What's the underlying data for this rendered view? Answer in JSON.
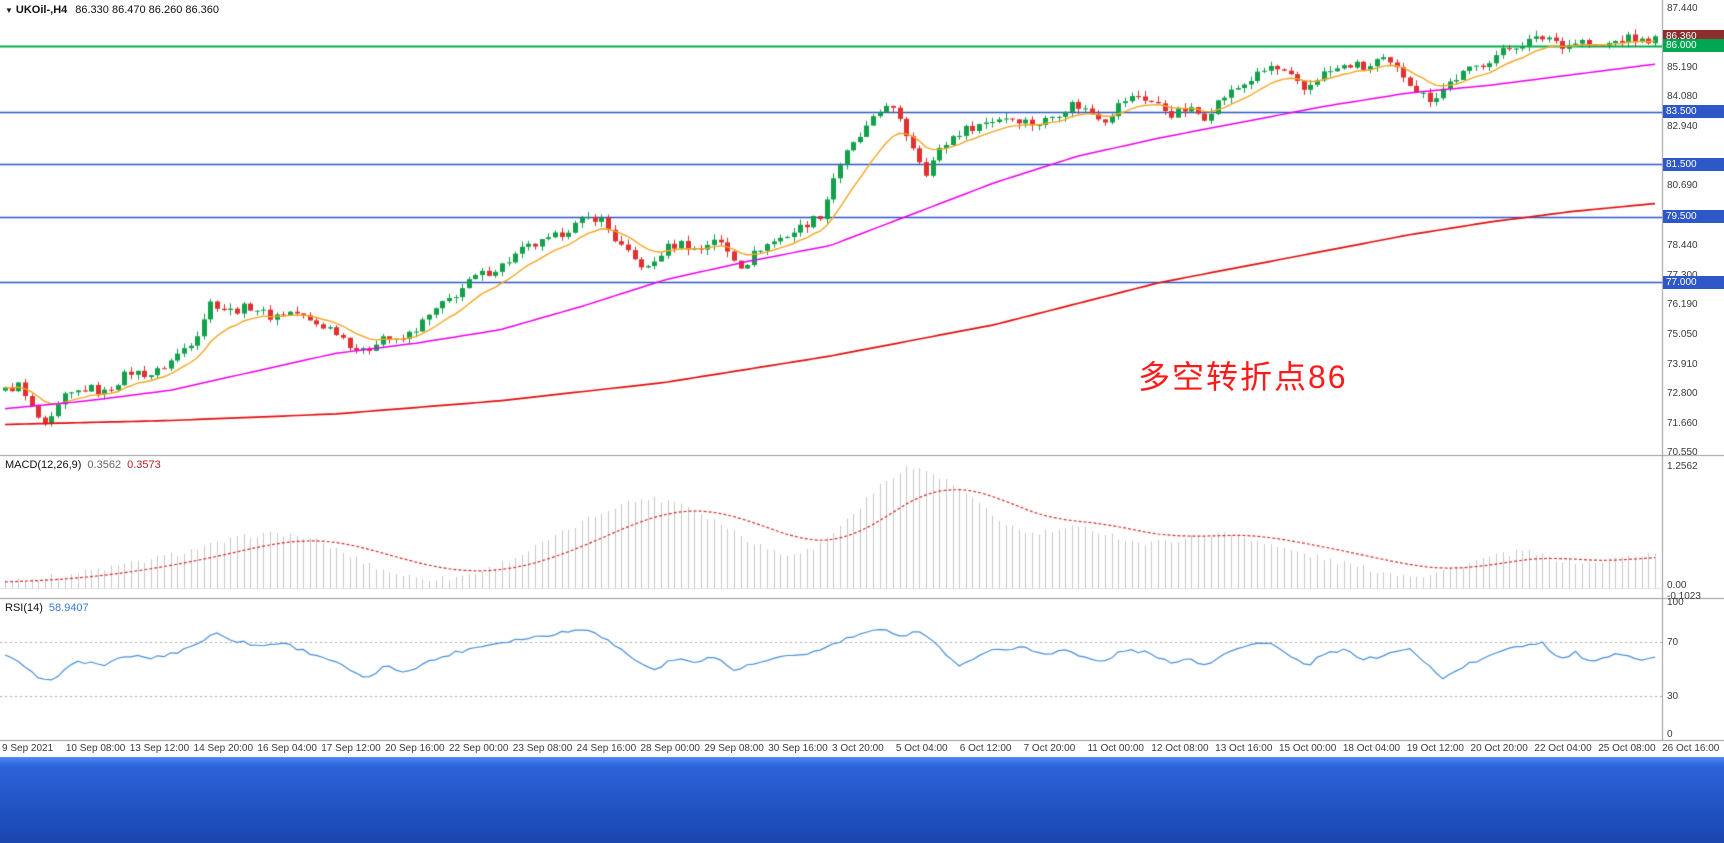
{
  "header": {
    "collapse_icon": "▼",
    "symbol_period": "UKOil-,H4",
    "ohlc": "86.330 86.470 86.260 86.360"
  },
  "chart_data": {
    "type": "candlestick",
    "symbol": "UKOil",
    "timeframe": "H4",
    "price_panel": {
      "ylim": [
        70.44,
        87.74
      ],
      "axis_ticks": [
        "87.440",
        "85.190",
        "84.080",
        "82.940",
        "80.690",
        "78.440",
        "77.300",
        "76.190",
        "75.050",
        "73.910",
        "72.800",
        "71.660",
        "70.550"
      ],
      "badges": [
        {
          "label": "86.360",
          "price": 86.36,
          "bg": "#8b2e2e",
          "role": "current-price"
        },
        {
          "label": "86.000",
          "price": 86.0,
          "bg": "#00a651",
          "role": "horizontal-line"
        },
        {
          "label": "83.500",
          "price": 83.5,
          "bg": "#2e58c8",
          "role": "support-line"
        },
        {
          "label": "81.500",
          "price": 81.5,
          "bg": "#2e58c8",
          "role": "support-line"
        },
        {
          "label": "79.500",
          "price": 79.5,
          "bg": "#2e58c8",
          "role": "support-line"
        },
        {
          "label": "77.000",
          "price": 77.0,
          "bg": "#2e58c8",
          "role": "support-line"
        }
      ],
      "hlines": [
        {
          "price": 86.0,
          "color": "#00b050",
          "width": 2
        },
        {
          "price": 83.5,
          "color": "#2e58c8",
          "width": 1.4
        },
        {
          "price": 81.5,
          "color": "#2e58c8",
          "width": 1.4
        },
        {
          "price": 79.5,
          "color": "#2e58c8",
          "width": 1.4
        },
        {
          "price": 77.0,
          "color": "#2e58c8",
          "width": 1.4
        }
      ],
      "candles": {
        "count": 250,
        "up_color": "#12a14b",
        "down_color": "#e03030",
        "close_anchors": [
          [
            0,
            72.9
          ],
          [
            0.008,
            73.1
          ],
          [
            0.015,
            72.3
          ],
          [
            0.025,
            71.4
          ],
          [
            0.035,
            72.6
          ],
          [
            0.05,
            73.0
          ],
          [
            0.06,
            72.8
          ],
          [
            0.075,
            73.6
          ],
          [
            0.09,
            73.5
          ],
          [
            0.1,
            74.0
          ],
          [
            0.115,
            74.9
          ],
          [
            0.125,
            76.3
          ],
          [
            0.135,
            75.9
          ],
          [
            0.15,
            76.1
          ],
          [
            0.16,
            75.7
          ],
          [
            0.175,
            75.9
          ],
          [
            0.185,
            75.5
          ],
          [
            0.2,
            75.2
          ],
          [
            0.21,
            74.6
          ],
          [
            0.218,
            74.3
          ],
          [
            0.228,
            75.0
          ],
          [
            0.238,
            74.7
          ],
          [
            0.25,
            75.3
          ],
          [
            0.26,
            75.9
          ],
          [
            0.27,
            76.4
          ],
          [
            0.285,
            77.2
          ],
          [
            0.3,
            77.6
          ],
          [
            0.315,
            78.3
          ],
          [
            0.33,
            78.6
          ],
          [
            0.34,
            79.0
          ],
          [
            0.352,
            79.4
          ],
          [
            0.36,
            79.5
          ],
          [
            0.37,
            78.6
          ],
          [
            0.38,
            77.9
          ],
          [
            0.39,
            77.5
          ],
          [
            0.4,
            78.3
          ],
          [
            0.41,
            78.5
          ],
          [
            0.42,
            78.2
          ],
          [
            0.43,
            78.7
          ],
          [
            0.44,
            78.0
          ],
          [
            0.447,
            77.6
          ],
          [
            0.457,
            78.3
          ],
          [
            0.467,
            78.6
          ],
          [
            0.477,
            78.9
          ],
          [
            0.487,
            79.3
          ],
          [
            0.495,
            79.6
          ],
          [
            0.503,
            81.2
          ],
          [
            0.51,
            81.9
          ],
          [
            0.52,
            82.7
          ],
          [
            0.528,
            83.3
          ],
          [
            0.535,
            83.9
          ],
          [
            0.542,
            83.1
          ],
          [
            0.55,
            82.2
          ],
          [
            0.558,
            81.2
          ],
          [
            0.566,
            82.0
          ],
          [
            0.575,
            82.6
          ],
          [
            0.585,
            82.9
          ],
          [
            0.595,
            83.1
          ],
          [
            0.605,
            83.3
          ],
          [
            0.615,
            83.2
          ],
          [
            0.625,
            83.0
          ],
          [
            0.637,
            83.4
          ],
          [
            0.647,
            83.8
          ],
          [
            0.657,
            83.5
          ],
          [
            0.667,
            83.2
          ],
          [
            0.677,
            83.9
          ],
          [
            0.687,
            84.1
          ],
          [
            0.697,
            83.8
          ],
          [
            0.707,
            83.4
          ],
          [
            0.717,
            83.6
          ],
          [
            0.727,
            83.3
          ],
          [
            0.737,
            84.0
          ],
          [
            0.747,
            84.4
          ],
          [
            0.757,
            84.8
          ],
          [
            0.767,
            85.2
          ],
          [
            0.777,
            84.9
          ],
          [
            0.787,
            84.3
          ],
          [
            0.797,
            84.9
          ],
          [
            0.807,
            85.1
          ],
          [
            0.817,
            85.3
          ],
          [
            0.825,
            85.1
          ],
          [
            0.833,
            85.5
          ],
          [
            0.841,
            85.2
          ],
          [
            0.849,
            84.8
          ],
          [
            0.857,
            84.2
          ],
          [
            0.865,
            83.95
          ],
          [
            0.875,
            84.6
          ],
          [
            0.885,
            85.0
          ],
          [
            0.895,
            85.3
          ],
          [
            0.905,
            85.7
          ],
          [
            0.915,
            86.0
          ],
          [
            0.925,
            86.2
          ],
          [
            0.935,
            86.35
          ],
          [
            0.945,
            86.0
          ],
          [
            0.955,
            86.2
          ],
          [
            0.965,
            85.9
          ],
          [
            0.975,
            86.15
          ],
          [
            0.985,
            86.3
          ],
          [
            0.993,
            86.15
          ],
          [
            1,
            86.36
          ]
        ]
      },
      "moving_averages": [
        {
          "name": "fast-ma",
          "color": "#f5a623",
          "method": "ema_close"
        },
        {
          "name": "medium-ma",
          "color": "#ee00ee",
          "anchors": [
            [
              0,
              72.2
            ],
            [
              0.05,
              72.5
            ],
            [
              0.1,
              72.9
            ],
            [
              0.15,
              73.6
            ],
            [
              0.2,
              74.3
            ],
            [
              0.25,
              74.7
            ],
            [
              0.3,
              75.2
            ],
            [
              0.35,
              76.1
            ],
            [
              0.4,
              77.1
            ],
            [
              0.45,
              77.8
            ],
            [
              0.5,
              78.4
            ],
            [
              0.55,
              79.6
            ],
            [
              0.6,
              80.8
            ],
            [
              0.65,
              81.8
            ],
            [
              0.7,
              82.5
            ],
            [
              0.75,
              83.1
            ],
            [
              0.8,
              83.7
            ],
            [
              0.85,
              84.2
            ],
            [
              0.9,
              84.5
            ],
            [
              0.95,
              84.9
            ],
            [
              1,
              85.3
            ]
          ]
        },
        {
          "name": "slow-ma",
          "color": "#e01010",
          "anchors": [
            [
              0,
              71.6
            ],
            [
              0.1,
              71.75
            ],
            [
              0.2,
              72.0
            ],
            [
              0.3,
              72.5
            ],
            [
              0.4,
              73.2
            ],
            [
              0.5,
              74.2
            ],
            [
              0.6,
              75.4
            ],
            [
              0.65,
              76.2
            ],
            [
              0.7,
              77.0
            ],
            [
              0.75,
              77.6
            ],
            [
              0.8,
              78.2
            ],
            [
              0.85,
              78.8
            ],
            [
              0.9,
              79.3
            ],
            [
              0.95,
              79.7
            ],
            [
              1,
              80.0
            ]
          ]
        }
      ],
      "annotation": {
        "text": "多空转折点86",
        "color": "#ff1a1a"
      }
    },
    "macd_panel": {
      "label": "MACD(12,26,9)",
      "value_main": "0.3562",
      "value_signal": "0.3573",
      "ylim": [
        -0.1023,
        1.35
      ],
      "histogram_color": "#c9c9c9",
      "signal_color": "#d23030",
      "axis_ticks": [
        {
          "label": "1.2562",
          "value": 1.2562
        },
        {
          "label": "0.00",
          "value": 0.0
        },
        {
          "label": "-0.1023",
          "value": -0.1023
        }
      ],
      "anchors": [
        [
          0,
          0.08
        ],
        [
          0.03,
          0.12
        ],
        [
          0.06,
          0.2
        ],
        [
          0.09,
          0.3
        ],
        [
          0.12,
          0.42
        ],
        [
          0.15,
          0.55
        ],
        [
          0.17,
          0.56
        ],
        [
          0.19,
          0.48
        ],
        [
          0.21,
          0.32
        ],
        [
          0.23,
          0.18
        ],
        [
          0.25,
          0.1
        ],
        [
          0.27,
          0.1
        ],
        [
          0.29,
          0.18
        ],
        [
          0.31,
          0.32
        ],
        [
          0.33,
          0.5
        ],
        [
          0.35,
          0.68
        ],
        [
          0.37,
          0.85
        ],
        [
          0.39,
          0.93
        ],
        [
          0.41,
          0.88
        ],
        [
          0.43,
          0.7
        ],
        [
          0.45,
          0.5
        ],
        [
          0.47,
          0.35
        ],
        [
          0.49,
          0.4
        ],
        [
          0.51,
          0.7
        ],
        [
          0.53,
          1.05
        ],
        [
          0.545,
          1.25
        ],
        [
          0.56,
          1.2
        ],
        [
          0.58,
          1.0
        ],
        [
          0.6,
          0.72
        ],
        [
          0.62,
          0.55
        ],
        [
          0.64,
          0.6
        ],
        [
          0.655,
          0.62
        ],
        [
          0.67,
          0.55
        ],
        [
          0.69,
          0.45
        ],
        [
          0.71,
          0.5
        ],
        [
          0.73,
          0.55
        ],
        [
          0.745,
          0.56
        ],
        [
          0.76,
          0.48
        ],
        [
          0.78,
          0.38
        ],
        [
          0.8,
          0.3
        ],
        [
          0.82,
          0.22
        ],
        [
          0.84,
          0.15
        ],
        [
          0.86,
          0.13
        ],
        [
          0.88,
          0.22
        ],
        [
          0.9,
          0.32
        ],
        [
          0.92,
          0.38
        ],
        [
          0.94,
          0.3
        ],
        [
          0.96,
          0.25
        ],
        [
          0.98,
          0.32
        ],
        [
          1,
          0.36
        ]
      ]
    },
    "rsi_panel": {
      "label": "RSI(14)",
      "value": "58.9407",
      "line_color": "#4a90d9",
      "levels": [
        70,
        30
      ],
      "axis_ticks": [
        {
          "label": "100",
          "value": 100
        },
        {
          "label": "70",
          "value": 70
        },
        {
          "label": "30",
          "value": 30
        },
        {
          "label": "0",
          "value": 0
        }
      ],
      "anchors": [
        [
          0,
          60
        ],
        [
          0.012,
          52
        ],
        [
          0.022,
          40
        ],
        [
          0.03,
          44
        ],
        [
          0.045,
          56
        ],
        [
          0.06,
          53
        ],
        [
          0.075,
          60
        ],
        [
          0.09,
          58
        ],
        [
          0.105,
          63
        ],
        [
          0.118,
          70
        ],
        [
          0.128,
          77
        ],
        [
          0.14,
          71
        ],
        [
          0.155,
          67
        ],
        [
          0.168,
          70
        ],
        [
          0.18,
          64
        ],
        [
          0.195,
          58
        ],
        [
          0.208,
          50
        ],
        [
          0.218,
          42
        ],
        [
          0.23,
          52
        ],
        [
          0.242,
          48
        ],
        [
          0.258,
          56
        ],
        [
          0.272,
          62
        ],
        [
          0.288,
          67
        ],
        [
          0.305,
          71
        ],
        [
          0.322,
          74
        ],
        [
          0.34,
          78
        ],
        [
          0.355,
          80
        ],
        [
          0.368,
          69
        ],
        [
          0.382,
          57
        ],
        [
          0.392,
          49
        ],
        [
          0.405,
          57
        ],
        [
          0.418,
          56
        ],
        [
          0.43,
          59
        ],
        [
          0.442,
          49
        ],
        [
          0.452,
          53
        ],
        [
          0.465,
          57
        ],
        [
          0.478,
          60
        ],
        [
          0.492,
          63
        ],
        [
          0.505,
          70
        ],
        [
          0.518,
          76
        ],
        [
          0.532,
          79
        ],
        [
          0.545,
          75
        ],
        [
          0.555,
          79
        ],
        [
          0.565,
          68
        ],
        [
          0.578,
          51
        ],
        [
          0.59,
          61
        ],
        [
          0.603,
          65
        ],
        [
          0.617,
          66
        ],
        [
          0.63,
          61
        ],
        [
          0.642,
          65
        ],
        [
          0.652,
          59
        ],
        [
          0.665,
          55
        ],
        [
          0.678,
          64
        ],
        [
          0.69,
          63
        ],
        [
          0.705,
          55
        ],
        [
          0.717,
          58
        ],
        [
          0.728,
          53
        ],
        [
          0.74,
          63
        ],
        [
          0.753,
          67
        ],
        [
          0.765,
          71
        ],
        [
          0.778,
          60
        ],
        [
          0.788,
          52
        ],
        [
          0.8,
          61
        ],
        [
          0.812,
          64
        ],
        [
          0.825,
          57
        ],
        [
          0.838,
          61
        ],
        [
          0.85,
          66
        ],
        [
          0.862,
          53
        ],
        [
          0.872,
          43
        ],
        [
          0.885,
          53
        ],
        [
          0.898,
          58
        ],
        [
          0.91,
          66
        ],
        [
          0.922,
          68
        ],
        [
          0.932,
          70
        ],
        [
          0.942,
          57
        ],
        [
          0.952,
          62
        ],
        [
          0.962,
          54
        ],
        [
          0.972,
          59
        ],
        [
          0.982,
          62
        ],
        [
          0.992,
          57
        ],
        [
          1,
          58.9
        ]
      ]
    },
    "x_axis": {
      "labels": [
        "9 Sep 2021",
        "10 Sep 08:00",
        "13 Sep 12:00",
        "14 Sep 20:00",
        "16 Sep 04:00",
        "17 Sep 12:00",
        "20 Sep 16:00",
        "22 Sep 00:00",
        "23 Sep 08:00",
        "24 Sep 16:00",
        "28 Sep 00:00",
        "29 Sep 08:00",
        "30 Sep 16:00",
        "3 Oct 20:00",
        "5 Oct 04:00",
        "6 Oct 12:00",
        "7 Oct 20:00",
        "11 Oct 00:00",
        "12 Oct 08:00",
        "13 Oct 16:00",
        "15 Oct 00:00",
        "18 Oct 04:00",
        "19 Oct 12:00",
        "20 Oct 20:00",
        "22 Oct 04:00",
        "25 Oct 08:00",
        "26 Oct 16:00"
      ]
    }
  }
}
